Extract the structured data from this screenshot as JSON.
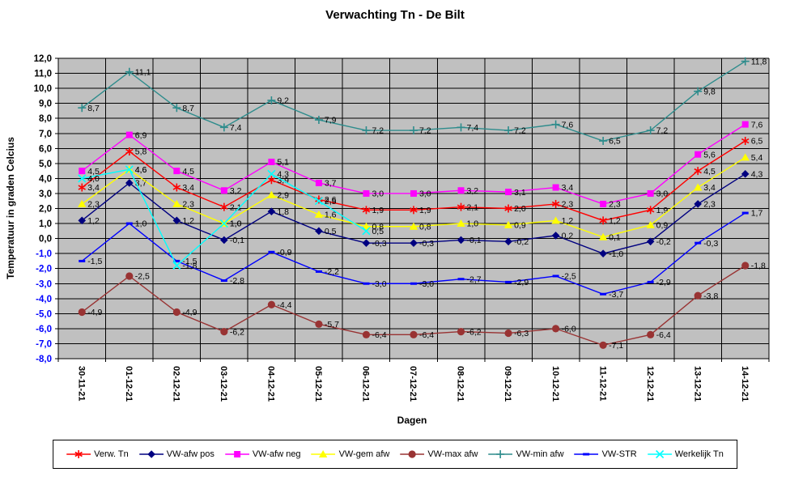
{
  "chart": {
    "title": "Verwachting Tn - De Bilt",
    "y_axis_title": "Temperatuur in graden Celcius",
    "x_axis_title": "Dagen",
    "plot_background": "#C0C0C0",
    "gridline_color": "#000000",
    "axis_color": "#000000",
    "positive_tick_color": "#000000",
    "negative_tick_color": "#0000FF",
    "y_tick_labels": [
      "12,0",
      "11,0",
      "10,0",
      "9,0",
      "8,0",
      "7,0",
      "6,0",
      "5,0",
      "4,0",
      "3,0",
      "2,0",
      "1,0",
      "0,0",
      "-1,0",
      "-2,0",
      "-3,0",
      "-4,0",
      "-5,0",
      "-6,0",
      "-7,0",
      "-8,0"
    ]
  },
  "chart_data": {
    "type": "line",
    "title": "Verwachting Tn - De Bilt",
    "xlabel": "Dagen",
    "ylabel": "Temperatuur in graden Celcius",
    "ylim": [
      -8,
      12
    ],
    "ytick_step": 1.0,
    "grid": "both",
    "legend_position": "bottom",
    "categories": [
      "30-11-21",
      "01-12-21",
      "02-12-21",
      "03-12-21",
      "04-12-21",
      "05-12-21",
      "06-12-21",
      "07-12-21",
      "08-12-21",
      "09-12-21",
      "10-12-21",
      "11-12-21",
      "12-12-21",
      "13-12-21",
      "14-12-21"
    ],
    "series": [
      {
        "name": "Verw. Tn",
        "color": "#FF0000",
        "marker": "star",
        "values": [
          3.4,
          5.8,
          3.4,
          2.1,
          3.9,
          2.6,
          1.9,
          1.9,
          2.1,
          2.0,
          2.3,
          1.2,
          1.9,
          4.5,
          6.5
        ],
        "labels": [
          "3,4",
          "5,8",
          "3,4",
          "2,1",
          "3,9",
          "2,6",
          "1,9",
          "1,9",
          "2,1",
          "2,0",
          "2,3",
          "1,2",
          "1,9",
          "4,5",
          "6,5"
        ]
      },
      {
        "name": "VW-afw pos",
        "color": "#000080",
        "marker": "diamond",
        "values": [
          1.2,
          3.7,
          1.2,
          -0.1,
          1.8,
          0.5,
          -0.3,
          -0.3,
          -0.1,
          -0.2,
          0.2,
          -1.0,
          -0.2,
          2.3,
          4.3
        ],
        "labels": [
          "1,2",
          "3,7",
          "1,2",
          "-0,1",
          "1,8",
          "0,5",
          "-0,3",
          "-0,3",
          "-0,1",
          "-0,2",
          "0,2",
          "-1,0",
          "-0,2",
          "2,3",
          "4,3"
        ]
      },
      {
        "name": "VW-afw neg",
        "color": "#FF00FF",
        "marker": "square",
        "values": [
          4.5,
          6.9,
          4.5,
          3.2,
          5.1,
          3.7,
          3.0,
          3.0,
          3.2,
          3.1,
          3.4,
          2.3,
          3.0,
          5.6,
          7.6
        ],
        "labels": [
          "4,5",
          "6,9",
          "4,5",
          "3,2",
          "5,1",
          "3,7",
          "3,0",
          "3,0",
          "3,2",
          "3,1",
          "3,4",
          "2,3",
          "3,0",
          "5,6",
          "7,6"
        ]
      },
      {
        "name": "VW-gem afw",
        "color": "#FFFF00",
        "marker": "triangle",
        "values": [
          2.3,
          4.6,
          2.3,
          1.0,
          2.9,
          1.6,
          0.8,
          0.8,
          1.0,
          0.9,
          1.2,
          0.1,
          0.9,
          3.4,
          5.4
        ],
        "labels": [
          "2,3",
          "4,6",
          "2,3",
          "1,0",
          "2,9",
          "1,6",
          "0,8",
          "0,8",
          "1,0",
          "0,9",
          "1,2",
          "0,1",
          "0,9",
          "3,4",
          "5,4"
        ]
      },
      {
        "name": "VW-max afw",
        "color": "#993333",
        "marker": "circle",
        "values": [
          -4.9,
          -2.5,
          -4.9,
          -6.2,
          -4.4,
          -5.7,
          -6.4,
          -6.4,
          -6.2,
          -6.3,
          -6.0,
          -7.1,
          -6.4,
          -3.8,
          -1.8
        ],
        "labels": [
          "-4,9",
          "-2,5",
          "-4,9",
          "-6,2",
          "-4,4",
          "-5,7",
          "-6,4",
          "-6,4",
          "-6,2",
          "-6,3",
          "-6,0",
          "-7,1",
          "-6,4",
          "-3,8",
          "-1,8"
        ]
      },
      {
        "name": "VW-min afw",
        "color": "#2D8C8C",
        "marker": "plus",
        "values": [
          8.7,
          11.1,
          8.7,
          7.4,
          9.2,
          7.9,
          7.2,
          7.2,
          7.4,
          7.2,
          7.6,
          6.5,
          7.2,
          9.8,
          11.8
        ],
        "labels": [
          "8,7",
          "11,1",
          "8,7",
          "7,4",
          "9,2",
          "7,9",
          "7,2",
          "7,2",
          "7,4",
          "7,2",
          "7,6",
          "6,5",
          "7,2",
          "9,8",
          "11,8"
        ]
      },
      {
        "name": "VW-STR",
        "color": "#0000FF",
        "marker": "dash",
        "values": [
          -1.5,
          1.0,
          -1.5,
          -2.8,
          -0.9,
          -2.2,
          -3.0,
          -3.0,
          -2.7,
          -2.9,
          -2.5,
          -3.7,
          -2.9,
          -0.3,
          1.7
        ],
        "labels": [
          "-1,5",
          "1,0",
          "-1,5",
          "-2,8",
          "-0,9",
          "-2,2",
          "-3,0",
          "-3,0",
          "-2,7",
          "-2,9",
          "-2,5",
          "-3,7",
          "-2,9",
          "-0,3",
          "1,7"
        ]
      },
      {
        "name": "Werkelijk Tn",
        "color": "#00FFFF",
        "marker": "x",
        "values": [
          4.0,
          4.6,
          -1.8,
          1.0,
          4.3,
          2.5,
          0.5,
          null,
          null,
          null,
          null,
          null,
          null,
          null,
          null
        ],
        "labels": [
          "4,0",
          "4,6",
          "-1,8",
          "1,0",
          "4,3",
          "2,5",
          "0,5",
          null,
          null,
          null,
          null,
          null,
          null,
          null,
          null
        ]
      }
    ]
  }
}
